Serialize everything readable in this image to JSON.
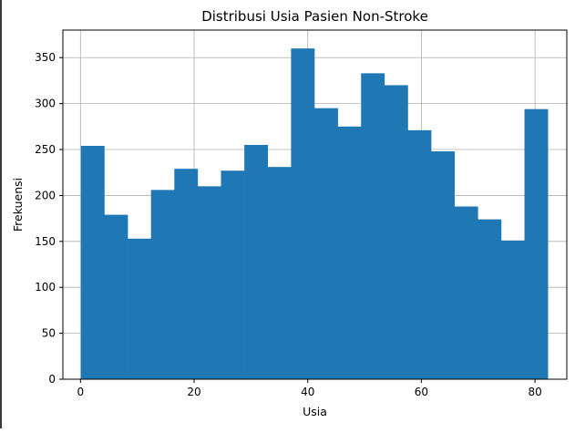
{
  "chart_data": {
    "type": "bar",
    "title": "Distribusi Usia Pasien Non-Stroke",
    "xlabel": "Usia",
    "ylabel": "Frekuensi",
    "xlim": [
      -3.1,
      85.6
    ],
    "ylim": [
      0,
      380
    ],
    "grid": true,
    "bar_color": "#1f77b4",
    "x_ticks": [
      0,
      20,
      40,
      60,
      80
    ],
    "y_ticks": [
      0,
      50,
      100,
      150,
      200,
      250,
      300,
      350
    ],
    "bins": [
      [
        0.08,
        4.19
      ],
      [
        4.19,
        8.3
      ],
      [
        8.3,
        12.41
      ],
      [
        12.41,
        16.52
      ],
      [
        16.52,
        20.62
      ],
      [
        20.62,
        24.73
      ],
      [
        24.73,
        28.84
      ],
      [
        28.84,
        32.95
      ],
      [
        32.95,
        37.06
      ],
      [
        37.06,
        41.17
      ],
      [
        41.17,
        45.28
      ],
      [
        45.28,
        49.39
      ],
      [
        49.39,
        53.5
      ],
      [
        53.5,
        57.61
      ],
      [
        57.61,
        61.71
      ],
      [
        61.71,
        65.82
      ],
      [
        65.82,
        69.93
      ],
      [
        69.93,
        74.04
      ],
      [
        74.04,
        78.15
      ],
      [
        78.15,
        82.26
      ]
    ],
    "values": [
      254,
      179,
      153,
      206,
      229,
      210,
      227,
      255,
      231,
      360,
      295,
      275,
      333,
      320,
      271,
      248,
      188,
      174,
      151,
      294
    ]
  }
}
